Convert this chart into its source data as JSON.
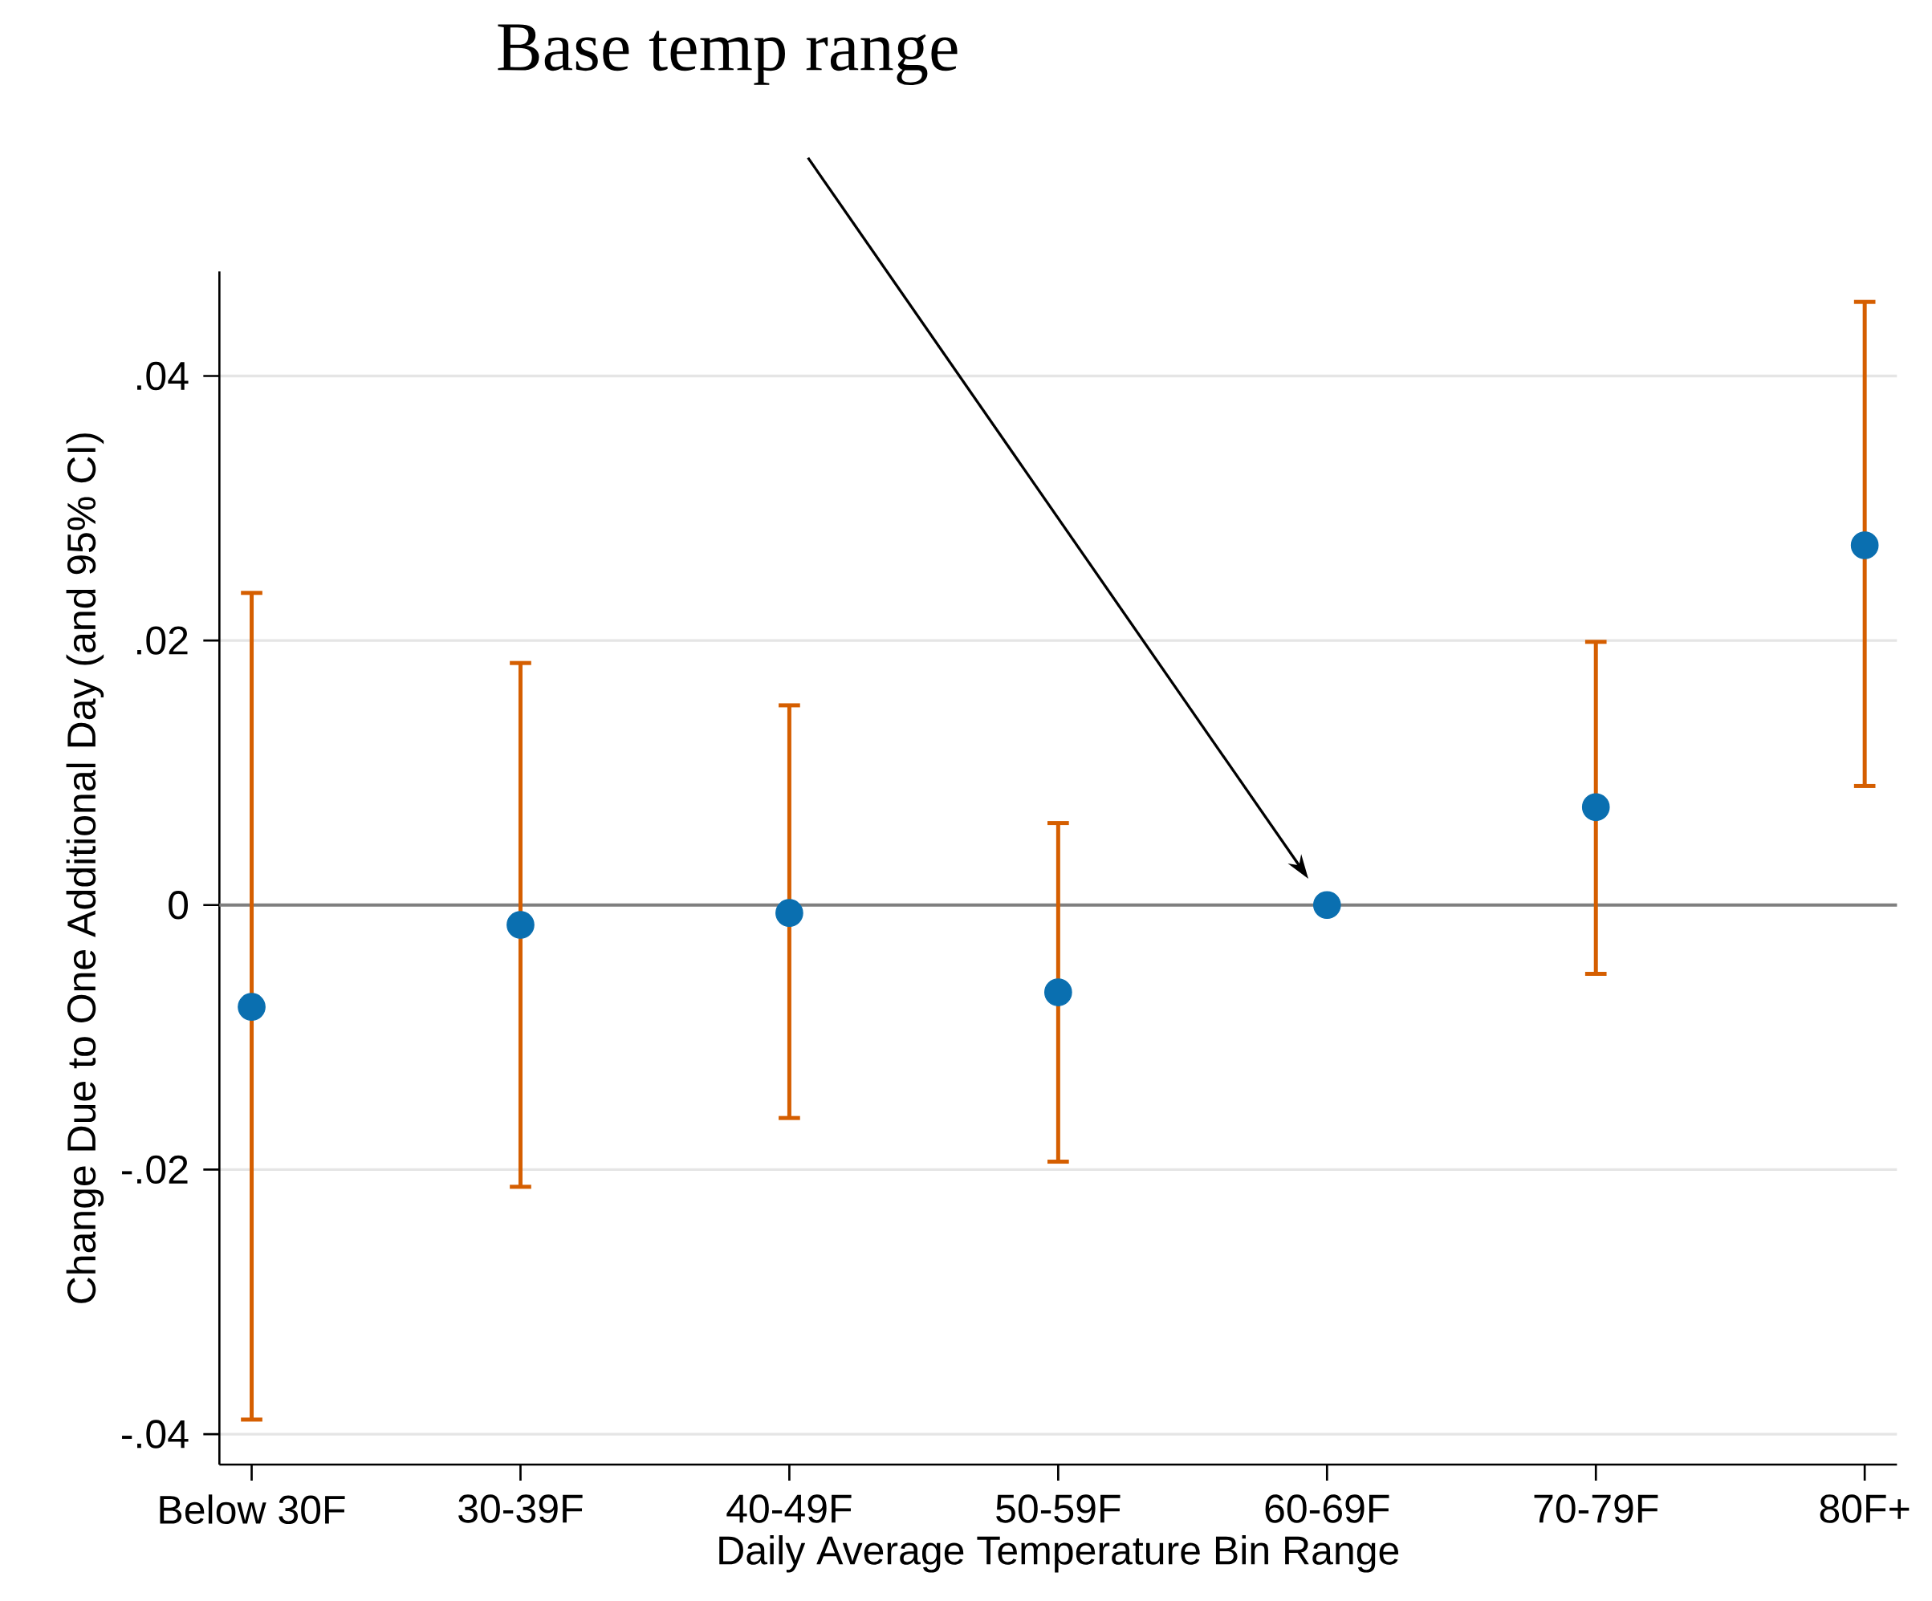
{
  "chart_data": {
    "type": "scatter",
    "xlabel": "Daily Average Temperature Bin Range",
    "ylabel": "Change Due to One Additional Day (and 95% CI)",
    "categories": [
      "Below 30F",
      "30-39F",
      "40-49F",
      "50-59F",
      "60-69F",
      "70-79F",
      "80F+"
    ],
    "values": [
      -0.0077,
      -0.0015,
      -0.0006,
      -0.0066,
      0,
      0.0074,
      0.0272
    ],
    "errors": [
      [
        -0.0389,
        0.0236
      ],
      [
        -0.0213,
        0.0183
      ],
      [
        -0.0161,
        0.0151
      ],
      [
        -0.0194,
        0.0062
      ],
      null,
      [
        -0.0052,
        0.0199
      ],
      [
        0.009,
        0.0456
      ]
    ],
    "color": "#0a6fb0",
    "marker": "circle",
    "ylim": [
      -0.0423,
      0.0479
    ],
    "yticks": [
      {
        "value": -0.04,
        "label": "-.04"
      },
      {
        "value": -0.02,
        "label": "-.02"
      },
      0,
      {
        "value": 0.02,
        "label": ".02"
      },
      {
        "value": 0.04,
        "label": ".04"
      }
    ],
    "grid": "y",
    "ref_lines": [
      {
        "axis": "y",
        "value": 0,
        "color": "#7f7f7f"
      }
    ],
    "annotations": [
      "Base temp range"
    ]
  }
}
